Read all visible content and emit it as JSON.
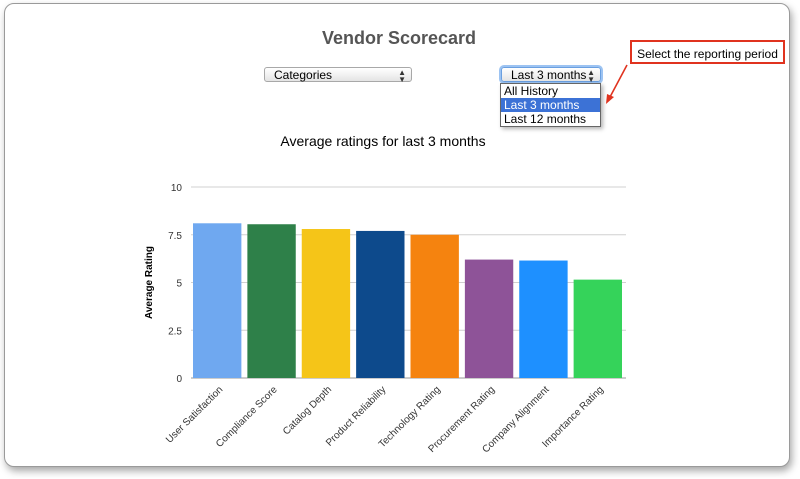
{
  "page": {
    "title": "Vendor Scorecard"
  },
  "controls": {
    "categories_select": {
      "value": "Categories"
    },
    "period_select": {
      "value": "Last 3 months",
      "options": [
        "All History",
        "Last 3 months",
        "Last 12 months"
      ],
      "selected_index": 1
    }
  },
  "callout": {
    "text": "Select the reporting period",
    "border_color": "#e0331f"
  },
  "chart_data": {
    "type": "bar",
    "title": "Average ratings for last 3 months",
    "ylabel": "Average Rating",
    "xlabel": "",
    "ylim": [
      0,
      10
    ],
    "yticks": [
      "0",
      "2.5",
      "5",
      "7.5",
      "10"
    ],
    "grid": true,
    "categories": [
      "User Satisfaction",
      "Compliance Score",
      "Catalog Depth",
      "Product Reliability",
      "Technology Rating",
      "Procurement Rating",
      "Company Alignment",
      "Importance Rating"
    ],
    "values": [
      8.1,
      8.05,
      7.8,
      7.7,
      7.5,
      6.2,
      6.15,
      5.15
    ],
    "colors": [
      "#6fa8f0",
      "#2e8049",
      "#f5c518",
      "#0d4a8c",
      "#f5830f",
      "#8e5398",
      "#1e90ff",
      "#35d35a"
    ]
  }
}
